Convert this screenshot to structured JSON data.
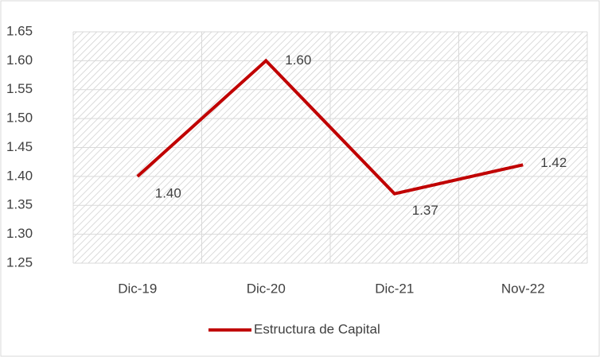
{
  "chart_data": {
    "type": "line",
    "categories": [
      "Dic-19",
      "Dic-20",
      "Dic-21",
      "Nov-22"
    ],
    "series": [
      {
        "name": "Estructura de Capital",
        "color": "#c00000",
        "values": [
          1.4,
          1.6,
          1.37,
          1.42
        ],
        "value_labels": [
          "1.40",
          "1.60",
          "1.37",
          "1.42"
        ]
      }
    ],
    "ylim": [
      1.25,
      1.65
    ],
    "yticks": [
      1.25,
      {
        "value": 1.3,
        "label": "1.30"
      },
      1.35,
      {
        "value": 1.4,
        "label": "1.40"
      },
      1.45,
      {
        "value": 1.5,
        "label": "1.50"
      },
      1.55,
      {
        "value": 1.6,
        "label": "1.60"
      },
      1.65
    ],
    "grid": true,
    "legend": "bottom"
  }
}
